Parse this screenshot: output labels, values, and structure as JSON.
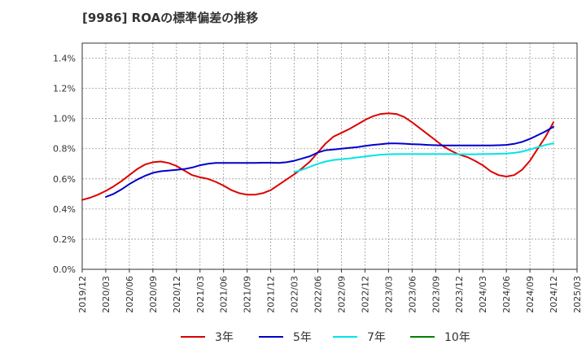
{
  "chart_data": {
    "type": "line",
    "title": "[9986]  ROAの標準偏差の推移",
    "xlabel": "",
    "ylabel": "",
    "ylim": [
      0,
      1.5
    ],
    "y_ticks": [
      0,
      0.2,
      0.4,
      0.6,
      0.8,
      1.0,
      1.2,
      1.4
    ],
    "y_tick_labels": [
      "0.0%",
      "0.2%",
      "0.4%",
      "0.6%",
      "0.8%",
      "1.0%",
      "1.2%",
      "1.4%"
    ],
    "x_tick_labels": [
      "2019/12",
      "2020/03",
      "2020/06",
      "2020/09",
      "2020/12",
      "2021/03",
      "2021/06",
      "2021/09",
      "2021/12",
      "2022/03",
      "2022/06",
      "2022/09",
      "2022/12",
      "2023/03",
      "2023/06",
      "2023/09",
      "2023/12",
      "2024/03",
      "2024/06",
      "2024/09",
      "2024/12",
      "2025/03"
    ],
    "grid": true,
    "legend_position": "bottom",
    "series": [
      {
        "name": "3年",
        "color": "#dd0000",
        "points": [
          [
            "2019/12",
            0.46
          ],
          [
            "2020/01",
            0.475
          ],
          [
            "2020/02",
            0.495
          ],
          [
            "2020/03",
            0.52
          ],
          [
            "2020/04",
            0.55
          ],
          [
            "2020/05",
            0.585
          ],
          [
            "2020/06",
            0.625
          ],
          [
            "2020/07",
            0.665
          ],
          [
            "2020/08",
            0.695
          ],
          [
            "2020/09",
            0.71
          ],
          [
            "2020/10",
            0.715
          ],
          [
            "2020/11",
            0.705
          ],
          [
            "2020/12",
            0.685
          ],
          [
            "2021/01",
            0.655
          ],
          [
            "2021/02",
            0.625
          ],
          [
            "2021/03",
            0.61
          ],
          [
            "2021/04",
            0.6
          ],
          [
            "2021/05",
            0.58
          ],
          [
            "2021/06",
            0.555
          ],
          [
            "2021/07",
            0.525
          ],
          [
            "2021/08",
            0.505
          ],
          [
            "2021/09",
            0.495
          ],
          [
            "2021/10",
            0.495
          ],
          [
            "2021/11",
            0.505
          ],
          [
            "2021/12",
            0.525
          ],
          [
            "2022/01",
            0.56
          ],
          [
            "2022/02",
            0.595
          ],
          [
            "2022/03",
            0.63
          ],
          [
            "2022/04",
            0.67
          ],
          [
            "2022/05",
            0.715
          ],
          [
            "2022/06",
            0.775
          ],
          [
            "2022/07",
            0.835
          ],
          [
            "2022/08",
            0.88
          ],
          [
            "2022/09",
            0.905
          ],
          [
            "2022/10",
            0.93
          ],
          [
            "2022/11",
            0.96
          ],
          [
            "2022/12",
            0.99
          ],
          [
            "2023/01",
            1.015
          ],
          [
            "2023/02",
            1.03
          ],
          [
            "2023/03",
            1.035
          ],
          [
            "2023/04",
            1.03
          ],
          [
            "2023/05",
            1.01
          ],
          [
            "2023/06",
            0.975
          ],
          [
            "2023/07",
            0.935
          ],
          [
            "2023/08",
            0.895
          ],
          [
            "2023/09",
            0.855
          ],
          [
            "2023/10",
            0.815
          ],
          [
            "2023/11",
            0.785
          ],
          [
            "2023/12",
            0.76
          ],
          [
            "2024/01",
            0.745
          ],
          [
            "2024/02",
            0.72
          ],
          [
            "2024/03",
            0.69
          ],
          [
            "2024/04",
            0.65
          ],
          [
            "2024/05",
            0.625
          ],
          [
            "2024/06",
            0.615
          ],
          [
            "2024/07",
            0.625
          ],
          [
            "2024/08",
            0.66
          ],
          [
            "2024/09",
            0.72
          ],
          [
            "2024/10",
            0.8
          ],
          [
            "2024/11",
            0.88
          ],
          [
            "2024/12",
            0.975
          ]
        ]
      },
      {
        "name": "5年",
        "color": "#0000cc",
        "points": [
          [
            "2020/03",
            0.48
          ],
          [
            "2020/04",
            0.5
          ],
          [
            "2020/05",
            0.53
          ],
          [
            "2020/06",
            0.565
          ],
          [
            "2020/07",
            0.595
          ],
          [
            "2020/08",
            0.62
          ],
          [
            "2020/09",
            0.64
          ],
          [
            "2020/10",
            0.65
          ],
          [
            "2020/11",
            0.655
          ],
          [
            "2020/12",
            0.66
          ],
          [
            "2021/01",
            0.665
          ],
          [
            "2021/02",
            0.675
          ],
          [
            "2021/03",
            0.69
          ],
          [
            "2021/04",
            0.7
          ],
          [
            "2021/05",
            0.705
          ],
          [
            "2021/06",
            0.705
          ],
          [
            "2021/07",
            0.705
          ],
          [
            "2021/08",
            0.705
          ],
          [
            "2021/09",
            0.705
          ],
          [
            "2021/10",
            0.705
          ],
          [
            "2021/11",
            0.707
          ],
          [
            "2021/12",
            0.707
          ],
          [
            "2022/01",
            0.705
          ],
          [
            "2022/02",
            0.71
          ],
          [
            "2022/03",
            0.72
          ],
          [
            "2022/04",
            0.735
          ],
          [
            "2022/05",
            0.75
          ],
          [
            "2022/06",
            0.775
          ],
          [
            "2022/07",
            0.79
          ],
          [
            "2022/08",
            0.795
          ],
          [
            "2022/09",
            0.8
          ],
          [
            "2022/10",
            0.805
          ],
          [
            "2022/11",
            0.81
          ],
          [
            "2022/12",
            0.818
          ],
          [
            "2023/01",
            0.825
          ],
          [
            "2023/02",
            0.83
          ],
          [
            "2023/03",
            0.835
          ],
          [
            "2023/04",
            0.835
          ],
          [
            "2023/05",
            0.833
          ],
          [
            "2023/06",
            0.83
          ],
          [
            "2023/07",
            0.828
          ],
          [
            "2023/08",
            0.825
          ],
          [
            "2023/09",
            0.823
          ],
          [
            "2023/10",
            0.822
          ],
          [
            "2023/11",
            0.822
          ],
          [
            "2023/12",
            0.822
          ],
          [
            "2024/01",
            0.822
          ],
          [
            "2024/02",
            0.822
          ],
          [
            "2024/03",
            0.822
          ],
          [
            "2024/04",
            0.822
          ],
          [
            "2024/05",
            0.823
          ],
          [
            "2024/06",
            0.825
          ],
          [
            "2024/07",
            0.832
          ],
          [
            "2024/08",
            0.845
          ],
          [
            "2024/09",
            0.865
          ],
          [
            "2024/10",
            0.89
          ],
          [
            "2024/11",
            0.915
          ],
          [
            "2024/12",
            0.945
          ]
        ]
      },
      {
        "name": "7年",
        "color": "#00e5e5",
        "points": [
          [
            "2022/03",
            0.645
          ],
          [
            "2022/04",
            0.66
          ],
          [
            "2022/05",
            0.68
          ],
          [
            "2022/06",
            0.7
          ],
          [
            "2022/07",
            0.715
          ],
          [
            "2022/08",
            0.725
          ],
          [
            "2022/09",
            0.73
          ],
          [
            "2022/10",
            0.735
          ],
          [
            "2022/11",
            0.742
          ],
          [
            "2022/12",
            0.748
          ],
          [
            "2023/01",
            0.755
          ],
          [
            "2023/02",
            0.76
          ],
          [
            "2023/03",
            0.763
          ],
          [
            "2023/04",
            0.764
          ],
          [
            "2023/05",
            0.764
          ],
          [
            "2023/06",
            0.764
          ],
          [
            "2023/07",
            0.764
          ],
          [
            "2023/08",
            0.764
          ],
          [
            "2023/09",
            0.764
          ],
          [
            "2023/10",
            0.764
          ],
          [
            "2023/11",
            0.764
          ],
          [
            "2023/12",
            0.763
          ],
          [
            "2024/01",
            0.763
          ],
          [
            "2024/02",
            0.763
          ],
          [
            "2024/03",
            0.764
          ],
          [
            "2024/04",
            0.765
          ],
          [
            "2024/05",
            0.766
          ],
          [
            "2024/06",
            0.768
          ],
          [
            "2024/07",
            0.772
          ],
          [
            "2024/08",
            0.78
          ],
          [
            "2024/09",
            0.795
          ],
          [
            "2024/10",
            0.81
          ],
          [
            "2024/11",
            0.825
          ],
          [
            "2024/12",
            0.835
          ]
        ]
      },
      {
        "name": "10年",
        "color": "#008000",
        "points": []
      }
    ]
  }
}
